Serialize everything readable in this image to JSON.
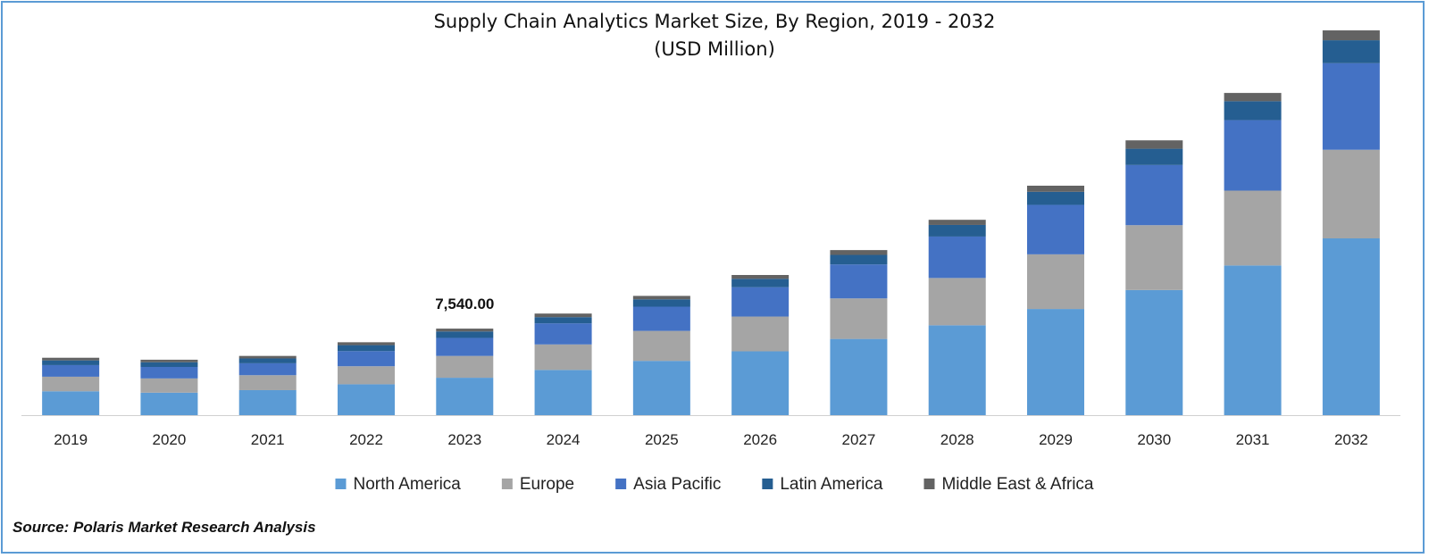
{
  "chart_data": {
    "type": "bar",
    "stacked": true,
    "title": "Supply Chain Analytics Market Size, By Region, 2019 - 2032",
    "subtitle": "(USD Million)",
    "categories": [
      "2019",
      "2020",
      "2021",
      "2022",
      "2023",
      "2024",
      "2025",
      "2026",
      "2027",
      "2028",
      "2029",
      "2030",
      "2031",
      "2032"
    ],
    "series": [
      {
        "name": "North America",
        "color": "#5b9bd5",
        "values": [
          2080,
          1960,
          2180,
          2690,
          3260,
          3940,
          4730,
          5560,
          6640,
          7830,
          9250,
          10900,
          13040,
          15400
        ]
      },
      {
        "name": "Europe",
        "color": "#a5a5a5",
        "values": [
          1270,
          1240,
          1300,
          1570,
          1900,
          2220,
          2610,
          3030,
          3530,
          4120,
          4760,
          5650,
          6520,
          7720
        ]
      },
      {
        "name": "Asia Pacific",
        "color": "#4472c4",
        "values": [
          1010,
          1000,
          1040,
          1320,
          1570,
          1840,
          2110,
          2560,
          2960,
          3610,
          4310,
          5240,
          6140,
          7540
        ]
      },
      {
        "name": "Latin America",
        "color": "#255e91",
        "values": [
          410,
          410,
          420,
          520,
          560,
          540,
          640,
          730,
          830,
          1010,
          1140,
          1420,
          1650,
          2000
        ]
      },
      {
        "name": "Middle East & Africa",
        "color": "#636363",
        "values": [
          230,
          220,
          220,
          250,
          250,
          310,
          300,
          330,
          420,
          450,
          530,
          730,
          720,
          860
        ]
      }
    ],
    "data_labels": [
      {
        "category": "2023",
        "text": "7,540.00"
      }
    ],
    "ylim": [
      0,
      35000
    ],
    "grid": false,
    "legend": "bottom"
  },
  "source": "Source: Polaris Market Research Analysis"
}
